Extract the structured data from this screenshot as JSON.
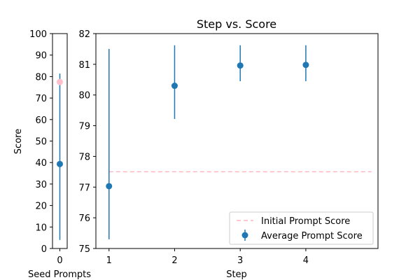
{
  "chart_data": [
    {
      "type": "scatter",
      "title": "",
      "xlabel": "Seed Prompts",
      "ylabel": "Score",
      "ylim": [
        0,
        100
      ],
      "x_ticks": [
        "0"
      ],
      "y_ticks": [
        "0",
        "10",
        "20",
        "30",
        "40",
        "50",
        "60",
        "70",
        "80",
        "90",
        "100"
      ],
      "series": [
        {
          "color": "#1f77b4",
          "points": [
            {
              "x": 0,
              "y": 39.3,
              "err_low": 4.0,
              "err_high": 81.4
            }
          ]
        },
        {
          "color": "#ffc0cb",
          "points": [
            {
              "x": 0,
              "y": 77.5
            }
          ]
        }
      ],
      "grid": false
    },
    {
      "type": "scatter",
      "title": "Step vs. Score",
      "xlabel": "Step",
      "ylabel": "",
      "ylim": [
        75,
        82
      ],
      "xlim": [
        0.8,
        5.1
      ],
      "x_ticks": [
        "1",
        "2",
        "3",
        "4"
      ],
      "y_ticks": [
        "75",
        "76",
        "77",
        "78",
        "79",
        "80",
        "81",
        "82"
      ],
      "series": [
        {
          "name": "Average Prompt Score",
          "color": "#1f77b4",
          "points": [
            {
              "x": 1,
              "y": 77.03,
              "err_low": 75.3,
              "err_high": 81.5
            },
            {
              "x": 2,
              "y": 80.3,
              "err_low": 79.22,
              "err_high": 81.62
            },
            {
              "x": 3,
              "y": 80.96,
              "err_low": 80.45,
              "err_high": 81.62
            },
            {
              "x": 4,
              "y": 80.98,
              "err_low": 80.45,
              "err_high": 81.62
            }
          ]
        },
        {
          "name": "Initial Prompt Score",
          "color": "#ffb6c1",
          "line_style": "dashed",
          "value": 77.5,
          "x_range": [
            1,
            5
          ]
        }
      ],
      "legend": "lower-right",
      "grid": false
    }
  ]
}
